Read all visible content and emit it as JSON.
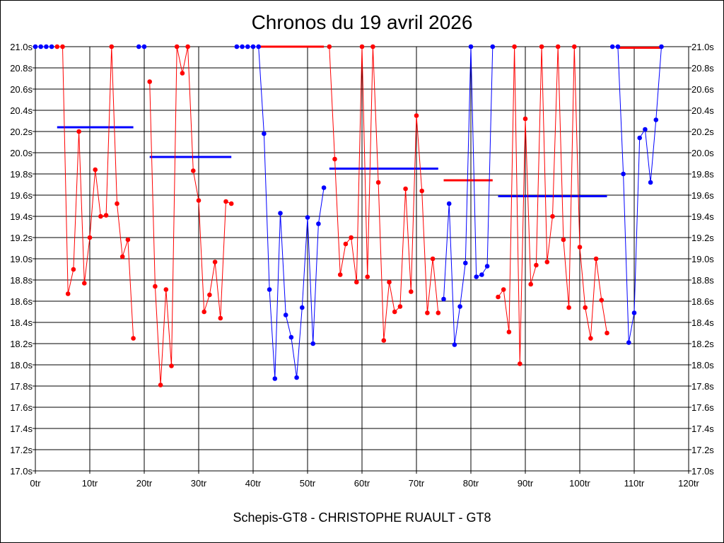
{
  "chart_data": {
    "type": "line",
    "title": "Chronos du 19 avril 2026",
    "subtitle": "Schepis-GT8 - CHRISTOPHE RUAULT - GT8",
    "xlim": [
      0,
      120
    ],
    "ylim": [
      17.0,
      21.0
    ],
    "x_ticks": [
      0,
      10,
      20,
      30,
      40,
      50,
      60,
      70,
      80,
      90,
      100,
      110,
      120
    ],
    "x_tick_labels": [
      "0tr",
      "10tr",
      "20tr",
      "30tr",
      "40tr",
      "50tr",
      "60tr",
      "70tr",
      "80tr",
      "90tr",
      "100tr",
      "110tr",
      "120tr"
    ],
    "y_ticks": [
      17.0,
      17.2,
      17.4,
      17.6,
      17.8,
      18.0,
      18.2,
      18.4,
      18.6,
      18.8,
      19.0,
      19.2,
      19.4,
      19.6,
      19.8,
      20.0,
      20.2,
      20.4,
      20.6,
      20.8,
      21.0
    ],
    "y_tick_labels": [
      "17.0s",
      "17.2s",
      "17.4s",
      "17.6s",
      "17.8s",
      "18.0s",
      "18.2s",
      "18.4s",
      "18.6s",
      "18.8s",
      "19.0s",
      "19.2s",
      "19.4s",
      "19.6s",
      "19.8s",
      "20.0s",
      "20.2s",
      "20.4s",
      "20.6s",
      "20.8s",
      "21.0s"
    ],
    "grid": true,
    "series": [
      {
        "color": "#0000ff",
        "points": [
          [
            0,
            21.0
          ],
          [
            1,
            21.0
          ],
          [
            2,
            21.0
          ],
          [
            3,
            21.0
          ]
        ]
      },
      {
        "color": "#ff0000",
        "points": [
          [
            4,
            21.0
          ],
          [
            5,
            21.0
          ],
          [
            6,
            18.67
          ],
          [
            7,
            18.9
          ],
          [
            8,
            20.2
          ],
          [
            9,
            18.77
          ],
          [
            10,
            19.2
          ],
          [
            11,
            19.84
          ],
          [
            12,
            19.4
          ],
          [
            13,
            19.41
          ],
          [
            14,
            21.0
          ],
          [
            15,
            19.52
          ],
          [
            16,
            19.02
          ],
          [
            17,
            19.18
          ],
          [
            18,
            18.25
          ]
        ]
      },
      {
        "color": "#0000ff",
        "points": [
          [
            19,
            21.0
          ],
          [
            20,
            21.0
          ]
        ]
      },
      {
        "color": "#ff0000",
        "points": [
          [
            21,
            20.67
          ],
          [
            22,
            18.74
          ],
          [
            23,
            17.81
          ],
          [
            24,
            18.71
          ],
          [
            25,
            17.99
          ],
          [
            26,
            21.0
          ],
          [
            27,
            20.75
          ],
          [
            28,
            21.0
          ],
          [
            29,
            19.83
          ],
          [
            30,
            19.55
          ],
          [
            31,
            18.5
          ],
          [
            32,
            18.66
          ],
          [
            33,
            18.97
          ],
          [
            34,
            18.44
          ],
          [
            35,
            19.54
          ],
          [
            36,
            19.52
          ]
        ]
      },
      {
        "color": "#0000ff",
        "points": [
          [
            37,
            21.0
          ],
          [
            38,
            21.0
          ],
          [
            39,
            21.0
          ],
          [
            40,
            21.0
          ],
          [
            41,
            21.0
          ],
          [
            42,
            20.18
          ],
          [
            43,
            18.71
          ],
          [
            44,
            17.87
          ],
          [
            45,
            19.43
          ],
          [
            46,
            18.47
          ],
          [
            47,
            18.26
          ],
          [
            48,
            17.88
          ],
          [
            49,
            18.54
          ],
          [
            50,
            19.39
          ],
          [
            51,
            18.2
          ],
          [
            52,
            19.33
          ],
          [
            53,
            19.67
          ]
        ]
      },
      {
        "color": "#ff0000",
        "points": [
          [
            54,
            21.0
          ],
          [
            55,
            19.94
          ],
          [
            56,
            18.85
          ],
          [
            57,
            19.14
          ],
          [
            58,
            19.2
          ],
          [
            59,
            18.78
          ],
          [
            60,
            21.0
          ],
          [
            61,
            18.83
          ],
          [
            62,
            21.0
          ],
          [
            63,
            19.72
          ],
          [
            64,
            18.23
          ],
          [
            65,
            18.78
          ],
          [
            66,
            18.5
          ],
          [
            67,
            18.55
          ],
          [
            68,
            19.66
          ],
          [
            69,
            18.69
          ],
          [
            70,
            20.35
          ],
          [
            71,
            19.64
          ],
          [
            72,
            18.49
          ],
          [
            73,
            19.0
          ],
          [
            74,
            18.49
          ]
        ]
      },
      {
        "color": "#0000ff",
        "points": [
          [
            75,
            18.62
          ],
          [
            76,
            19.52
          ],
          [
            77,
            18.19
          ],
          [
            78,
            18.55
          ],
          [
            79,
            18.96
          ],
          [
            80,
            21.0
          ],
          [
            81,
            18.83
          ],
          [
            82,
            18.85
          ],
          [
            83,
            18.93
          ],
          [
            84,
            21.0
          ]
        ]
      },
      {
        "color": "#ff0000",
        "points": [
          [
            85,
            18.64
          ],
          [
            86,
            18.71
          ],
          [
            87,
            18.31
          ],
          [
            88,
            21.0
          ],
          [
            89,
            18.01
          ],
          [
            90,
            20.32
          ],
          [
            91,
            18.76
          ],
          [
            92,
            18.94
          ],
          [
            93,
            21.0
          ],
          [
            94,
            18.97
          ],
          [
            95,
            19.4
          ],
          [
            96,
            21.0
          ],
          [
            97,
            19.18
          ],
          [
            98,
            18.54
          ],
          [
            99,
            21.0
          ],
          [
            100,
            19.11
          ],
          [
            101,
            18.54
          ],
          [
            102,
            18.25
          ],
          [
            103,
            19.0
          ],
          [
            104,
            18.61
          ],
          [
            105,
            18.3
          ]
        ]
      },
      {
        "color": "#0000ff",
        "points": [
          [
            106,
            21.0
          ],
          [
            107,
            21.0
          ],
          [
            108,
            19.8
          ],
          [
            109,
            18.21
          ],
          [
            110,
            18.49
          ],
          [
            111,
            20.14
          ],
          [
            112,
            20.22
          ],
          [
            113,
            19.72
          ],
          [
            114,
            20.31
          ],
          [
            115,
            21.0
          ]
        ]
      }
    ],
    "averages": [
      {
        "color": "#0000ff",
        "x": [
          4,
          18
        ],
        "y": 20.24
      },
      {
        "color": "#0000ff",
        "x": [
          21,
          36
        ],
        "y": 19.96
      },
      {
        "color": "#ff0000",
        "x": [
          41,
          53
        ],
        "y": 21.0
      },
      {
        "color": "#0000ff",
        "x": [
          54,
          74
        ],
        "y": 19.85
      },
      {
        "color": "#ff0000",
        "x": [
          75,
          84
        ],
        "y": 19.74
      },
      {
        "color": "#0000ff",
        "x": [
          85,
          105
        ],
        "y": 19.59
      },
      {
        "color": "#ff0000",
        "x": [
          107,
          115
        ],
        "y": 20.99
      }
    ]
  }
}
